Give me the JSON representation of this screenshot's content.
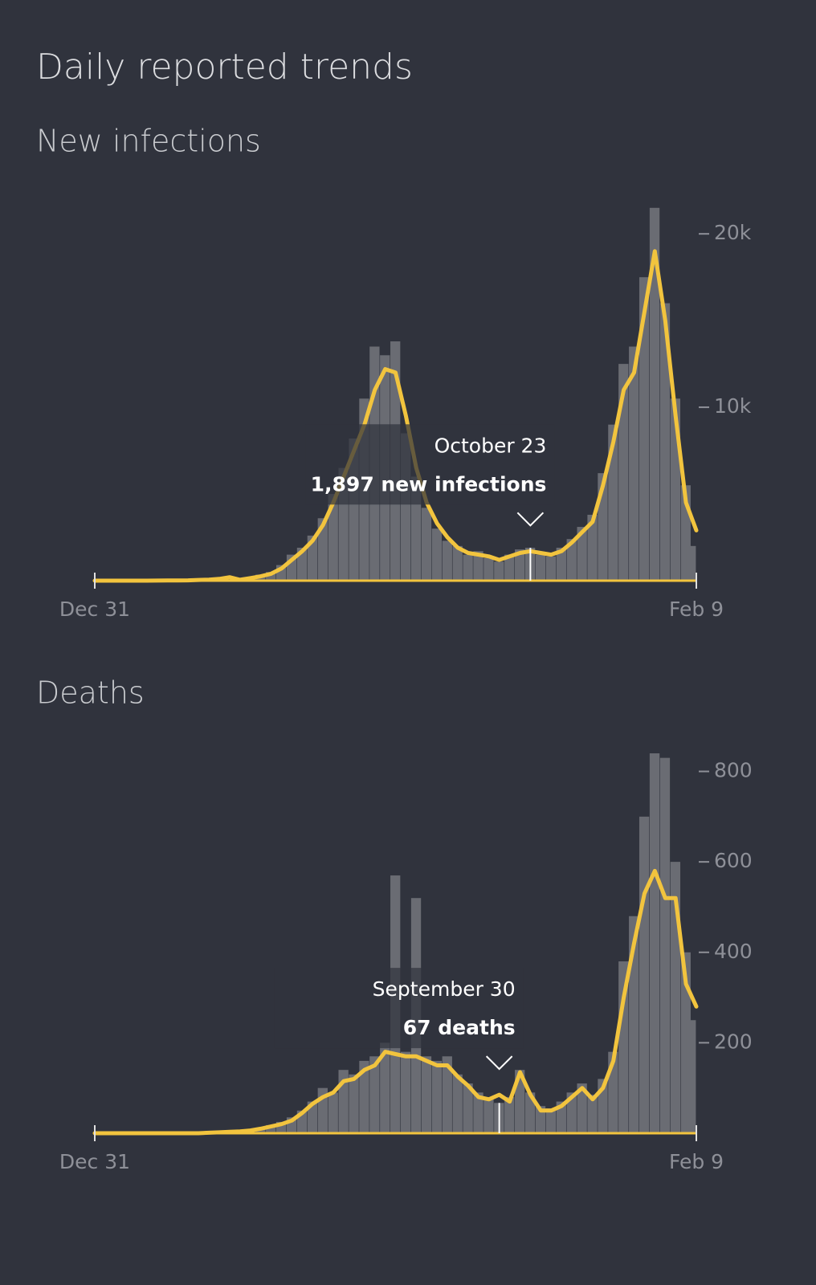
{
  "title": "Daily reported trends",
  "chart_data": [
    {
      "type": "bar",
      "subtitle": "New infections",
      "categories": [
        "Dec 31",
        null,
        null,
        null,
        null,
        null,
        null,
        null,
        null,
        null,
        null,
        null,
        null,
        null,
        null,
        null,
        null,
        null,
        null,
        null,
        null,
        null,
        null,
        null,
        null,
        null,
        null,
        null,
        null,
        null,
        null,
        null,
        null,
        null,
        null,
        null,
        null,
        null,
        null,
        null,
        null,
        null,
        "October 23",
        null,
        null,
        null,
        null,
        null,
        null,
        null,
        null,
        null,
        null,
        null,
        null,
        null,
        null,
        null,
        "Feb 9"
      ],
      "series": [
        {
          "color": "#6a6c73",
          "values": [
            0,
            0,
            0,
            0,
            0,
            0,
            10,
            20,
            30,
            40,
            60,
            80,
            150,
            250,
            100,
            200,
            350,
            500,
            900,
            1500,
            1900,
            2600,
            3600,
            5000,
            6500,
            8200,
            10500,
            13500,
            13000,
            13800,
            8500,
            6000,
            4200,
            3000,
            2300,
            2000,
            1500,
            1700,
            1300,
            1100,
            1500,
            1800,
            1897,
            1500,
            1400,
            1900,
            2400,
            3100,
            3800,
            6200,
            9000,
            12500,
            13500,
            17500,
            21500,
            16000,
            10500,
            5500,
            2000
          ]
        },
        {
          "type": "line",
          "color": "#f2c43e",
          "values": [
            0,
            0,
            0,
            0,
            0,
            0,
            5,
            10,
            15,
            20,
            40,
            60,
            100,
            200,
            50,
            150,
            250,
            400,
            700,
            1200,
            1700,
            2300,
            3200,
            4500,
            6000,
            7500,
            9000,
            11000,
            12200,
            12000,
            9500,
            6500,
            4500,
            3300,
            2500,
            1900,
            1600,
            1500,
            1400,
            1200,
            1400,
            1600,
            1700,
            1600,
            1500,
            1700,
            2200,
            2800,
            3400,
            5500,
            8000,
            11000,
            12000,
            15500,
            19000,
            15000,
            9500,
            4500,
            2900
          ]
        }
      ],
      "annotation": "1,897 new infections",
      "ylim": [
        0,
        22000
      ],
      "yticks": [
        {
          "value": 10000,
          "label": "10k"
        },
        {
          "value": 20000,
          "label": "20k"
        }
      ]
    },
    {
      "type": "bar",
      "subtitle": "Deaths",
      "categories": [
        "Dec 31",
        null,
        null,
        null,
        null,
        null,
        null,
        null,
        null,
        null,
        null,
        null,
        null,
        null,
        null,
        null,
        null,
        null,
        null,
        null,
        null,
        null,
        null,
        null,
        null,
        null,
        null,
        null,
        null,
        null,
        null,
        null,
        null,
        null,
        null,
        null,
        null,
        null,
        null,
        "September 30",
        null,
        null,
        null,
        null,
        null,
        null,
        null,
        null,
        null,
        null,
        null,
        null,
        null,
        null,
        null,
        null,
        null,
        null,
        "Feb 9"
      ],
      "series": [
        {
          "color": "#6a6c73",
          "values": [
            0,
            0,
            0,
            0,
            0,
            0,
            0,
            0,
            0,
            0,
            0,
            1,
            2,
            3,
            5,
            7,
            12,
            18,
            25,
            35,
            50,
            70,
            100,
            90,
            140,
            130,
            160,
            170,
            200,
            570,
            180,
            520,
            170,
            160,
            170,
            130,
            110,
            90,
            80,
            67,
            80,
            140,
            90,
            60,
            55,
            70,
            90,
            110,
            85,
            120,
            180,
            380,
            480,
            700,
            840,
            830,
            600,
            400,
            250
          ]
        },
        {
          "type": "line",
          "color": "#f2c43e",
          "values": [
            0,
            0,
            0,
            0,
            0,
            0,
            0,
            0,
            0,
            0,
            0,
            1,
            2,
            3,
            4,
            6,
            10,
            15,
            20,
            28,
            45,
            65,
            80,
            90,
            115,
            120,
            140,
            150,
            180,
            175,
            170,
            170,
            160,
            150,
            150,
            125,
            105,
            80,
            75,
            85,
            70,
            135,
            85,
            50,
            50,
            60,
            80,
            100,
            75,
            100,
            160,
            300,
            420,
            530,
            580,
            520,
            520,
            330,
            280
          ]
        }
      ],
      "annotation": "67 deaths",
      "ylim": [
        0,
        840
      ],
      "yticks": [
        200,
        400,
        600,
        800
      ]
    }
  ]
}
